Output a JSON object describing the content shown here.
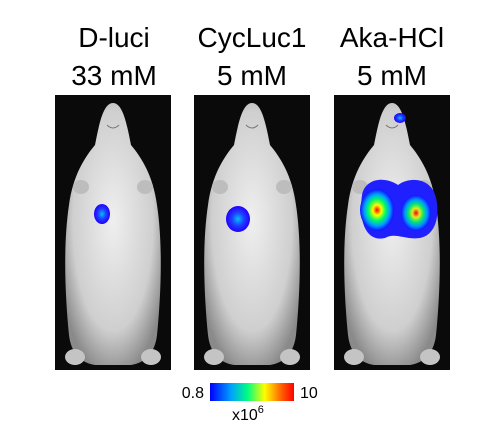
{
  "panels": [
    {
      "name": "D-luci",
      "concentration": "33 mM"
    },
    {
      "name": "CycLuc1",
      "concentration": "5 mM"
    },
    {
      "name": "Aka-HCl",
      "concentration": "5 mM"
    }
  ],
  "colorbar": {
    "min_label": "0.8",
    "max_label": "10",
    "unit_base": "x10",
    "unit_exp": "6"
  }
}
